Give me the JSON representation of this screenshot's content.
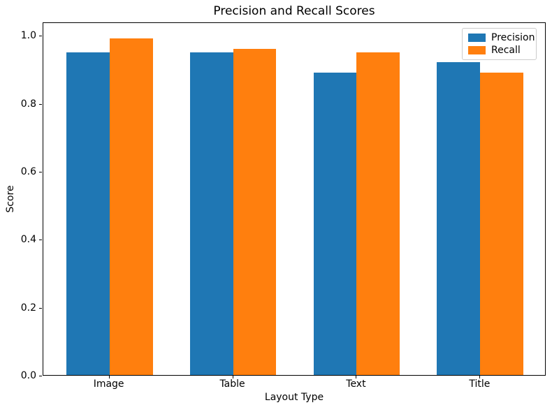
{
  "chart_data": {
    "type": "bar",
    "title": "Precision and Recall Scores",
    "xlabel": "Layout Type",
    "ylabel": "Score",
    "categories": [
      "Image",
      "Table",
      "Text",
      "Title"
    ],
    "series": [
      {
        "name": "Precision",
        "color": "#1f77b4",
        "values": [
          0.95,
          0.95,
          0.89,
          0.92
        ]
      },
      {
        "name": "Recall",
        "color": "#ff7f0e",
        "values": [
          0.99,
          0.96,
          0.95,
          0.89
        ]
      }
    ],
    "ylim": [
      0,
      1.04
    ],
    "yticks": [
      0.0,
      0.2,
      0.4,
      0.6,
      0.8,
      1.0
    ],
    "ytick_labels": [
      "0.0",
      "0.2",
      "0.4",
      "0.6",
      "0.8",
      "1.0"
    ],
    "grid": "off",
    "legend_position": "upper-right",
    "bar_width_units": 0.35,
    "x_range_units": [
      -0.535,
      3.535
    ]
  }
}
